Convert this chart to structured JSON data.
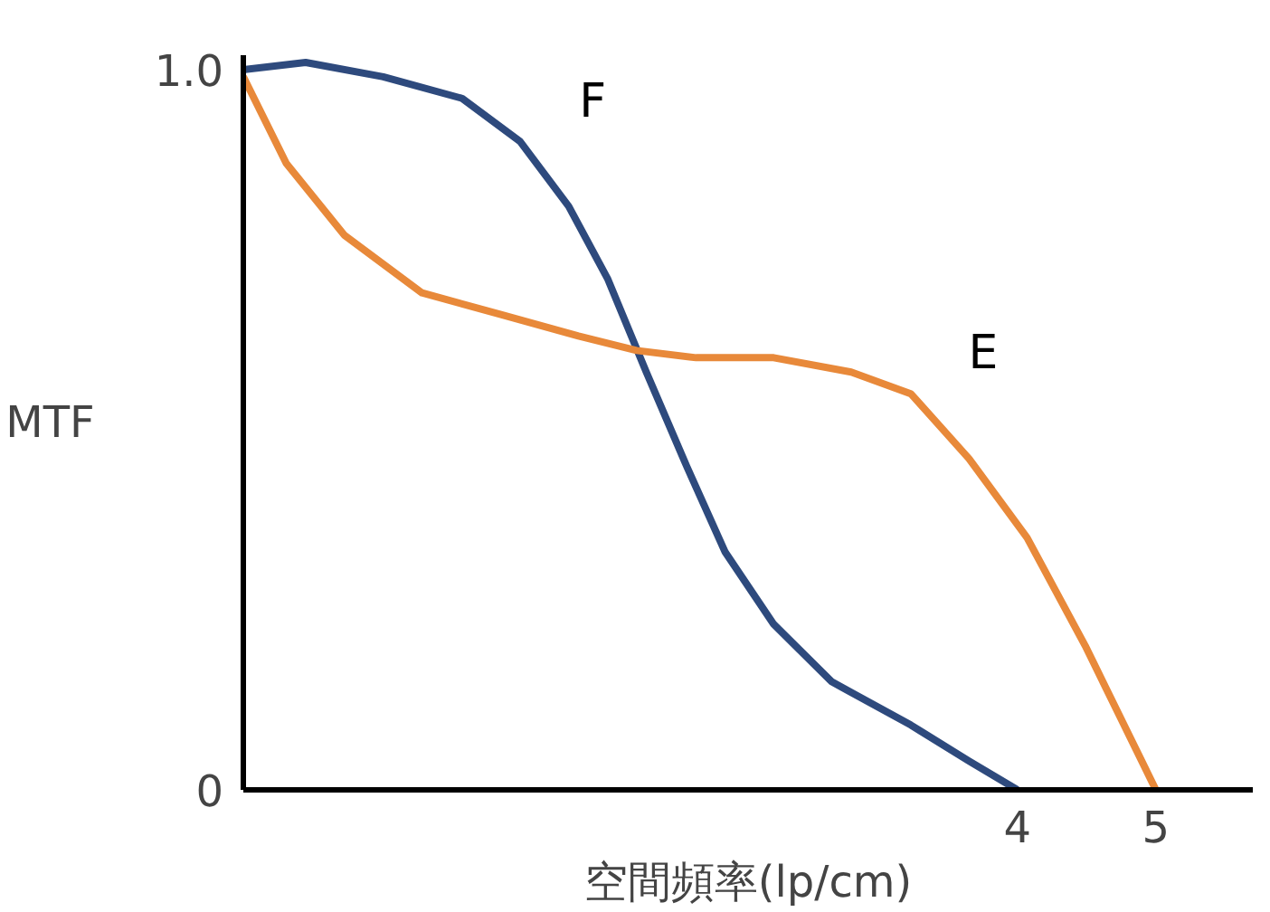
{
  "chart_data": {
    "type": "line",
    "xlabel": "空間頻率(lp/cm)",
    "ylabel": "MTF",
    "xlim": [
      -1.59,
      5.7
    ],
    "ylim": [
      0,
      1.02
    ],
    "xticks": [
      4,
      5
    ],
    "yticks": [
      0,
      {
        "value": 1,
        "label": "1.0"
      }
    ],
    "grid": false,
    "legend": false,
    "marker": "none",
    "line_style": "solid",
    "series": [
      {
        "name": "F",
        "color": "#2e4a7d",
        "x": [
          -1.59,
          -1.14,
          -0.58,
          -0.01,
          0.41,
          0.76,
          1.04,
          1.32,
          1.61,
          1.89,
          2.24,
          2.66,
          3.23,
          3.65,
          4.0
        ],
        "values": [
          1.0,
          1.01,
          0.99,
          0.96,
          0.9,
          0.81,
          0.71,
          0.58,
          0.45,
          0.33,
          0.23,
          0.15,
          0.09,
          0.04,
          0
        ]
      },
      {
        "name": "E",
        "color": "#e8893a",
        "x": [
          -1.59,
          -1.28,
          -0.86,
          -0.3,
          0.27,
          0.83,
          1.25,
          1.68,
          2.24,
          2.8,
          3.23,
          3.65,
          4.07,
          4.49,
          4.77,
          5.0
        ],
        "values": [
          0.99,
          0.87,
          0.77,
          0.69,
          0.66,
          0.63,
          0.61,
          0.6,
          0.6,
          0.58,
          0.55,
          0.46,
          0.35,
          0.2,
          0.09,
          0
        ]
      }
    ]
  }
}
